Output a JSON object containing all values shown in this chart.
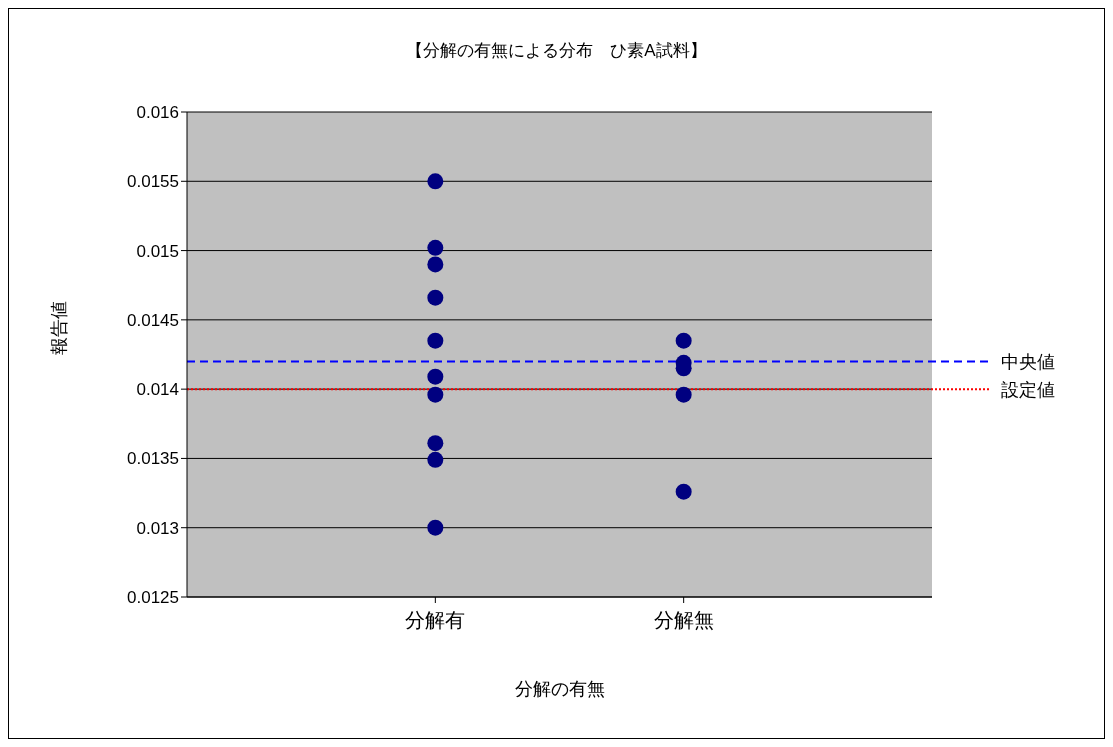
{
  "chart_data": {
    "type": "scatter",
    "title": "【分解の有無による分布　ひ素A試料】",
    "xlabel": "分解の有無",
    "ylabel": "報告値",
    "categories": [
      "分解有",
      "分解無"
    ],
    "series": [
      {
        "color": "#000080",
        "x": [
          "分解有",
          "分解有",
          "分解有",
          "分解有",
          "分解有",
          "分解有",
          "分解有",
          "分解有",
          "分解有",
          "分解有"
        ],
        "values": [
          0.0155,
          0.01502,
          0.0149,
          0.01466,
          0.01435,
          0.01409,
          0.01396,
          0.01361,
          0.01349,
          0.013
        ]
      },
      {
        "color": "#000080",
        "x": [
          "分解無",
          "分解無",
          "分解無",
          "分解無",
          "分解無"
        ],
        "values": [
          0.01435,
          0.01419,
          0.01415,
          0.01396,
          0.01326
        ]
      }
    ],
    "ylim": [
      0.0125,
      0.016
    ],
    "yticks": [
      0.0125,
      0.013,
      0.0135,
      0.014,
      0.0145,
      0.015,
      0.0155,
      0.016
    ],
    "grid": "y",
    "marker": "circle",
    "legend": false,
    "ref_lines": [
      {
        "axis": "y",
        "value": 0.0142,
        "label": "中央値",
        "color": "#0000ff",
        "line_style": "dashed"
      },
      {
        "axis": "y",
        "value": 0.014,
        "label": "設定値",
        "color": "#ff0000",
        "line_style": "dotted"
      }
    ]
  }
}
